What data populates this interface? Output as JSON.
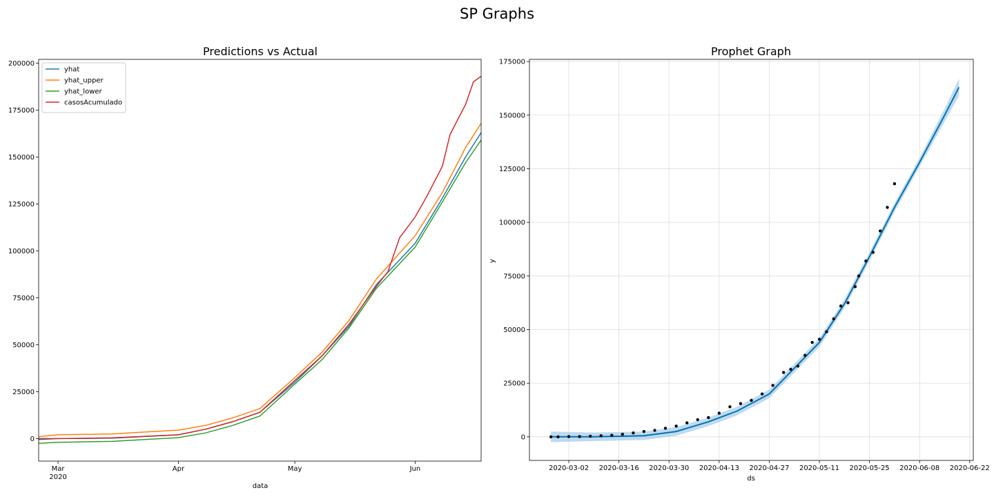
{
  "figure": {
    "title": "SP Graphs"
  },
  "chart_data": [
    {
      "type": "line",
      "title": "Predictions vs Actual",
      "xlabel": "data",
      "ylabel": "",
      "x_start": "2020-02-25",
      "x_end": "2020-06-18",
      "x_ticks": [
        {
          "date": "2020-03-01",
          "label": "Mar",
          "sublabel": "2020"
        },
        {
          "date": "2020-04-01",
          "label": "Apr",
          "sublabel": ""
        },
        {
          "date": "2020-05-01",
          "label": "May",
          "sublabel": ""
        },
        {
          "date": "2020-06-01",
          "label": "Jun",
          "sublabel": ""
        }
      ],
      "ylim": [
        -12000,
        202000
      ],
      "y_ticks": [
        0,
        25000,
        50000,
        75000,
        100000,
        125000,
        150000,
        175000,
        200000
      ],
      "grid": false,
      "legend": "top-left",
      "series": [
        {
          "name": "yhat",
          "color": "#1f77b4",
          "x": [
            "2020-02-25",
            "2020-03-01",
            "2020-03-15",
            "2020-04-01",
            "2020-04-08",
            "2020-04-15",
            "2020-04-22",
            "2020-05-01",
            "2020-05-08",
            "2020-05-15",
            "2020-05-22",
            "2020-06-01",
            "2020-06-08",
            "2020-06-14",
            "2020-06-18"
          ],
          "values": [
            -500,
            0,
            200,
            2000,
            5000,
            9000,
            14000,
            30000,
            44000,
            60000,
            82000,
            104000,
            128000,
            150000,
            163000
          ]
        },
        {
          "name": "yhat_upper",
          "color": "#ff7f0e",
          "x": [
            "2020-02-25",
            "2020-03-01",
            "2020-03-15",
            "2020-04-01",
            "2020-04-08",
            "2020-04-15",
            "2020-04-22",
            "2020-05-01",
            "2020-05-08",
            "2020-05-15",
            "2020-05-22",
            "2020-06-01",
            "2020-06-08",
            "2020-06-14",
            "2020-06-18"
          ],
          "values": [
            1000,
            2000,
            2500,
            4500,
            7000,
            11000,
            16000,
            32500,
            46000,
            63000,
            85000,
            108000,
            131000,
            155000,
            168000
          ]
        },
        {
          "name": "yhat_lower",
          "color": "#2ca02c",
          "x": [
            "2020-02-25",
            "2020-03-01",
            "2020-03-15",
            "2020-04-01",
            "2020-04-08",
            "2020-04-15",
            "2020-04-22",
            "2020-05-01",
            "2020-05-08",
            "2020-05-15",
            "2020-05-22",
            "2020-06-01",
            "2020-06-08",
            "2020-06-14",
            "2020-06-18"
          ],
          "values": [
            -2500,
            -2000,
            -1500,
            500,
            3000,
            7000,
            12000,
            29000,
            42000,
            59000,
            80000,
            102000,
            126000,
            147000,
            159000
          ]
        },
        {
          "name": "casosAcumulado",
          "color": "#d62728",
          "x": [
            "2020-02-25",
            "2020-03-01",
            "2020-03-15",
            "2020-04-01",
            "2020-04-08",
            "2020-04-15",
            "2020-04-22",
            "2020-05-01",
            "2020-05-08",
            "2020-05-15",
            "2020-05-22",
            "2020-05-25",
            "2020-05-28",
            "2020-06-01",
            "2020-06-04",
            "2020-06-08",
            "2020-06-10",
            "2020-06-14",
            "2020-06-16",
            "2020-06-18"
          ],
          "values": [
            0,
            0,
            400,
            2000,
            5000,
            9000,
            14000,
            31000,
            44000,
            61000,
            81000,
            89000,
            107000,
            118000,
            129000,
            145000,
            162000,
            178000,
            190000,
            193000
          ]
        }
      ]
    },
    {
      "type": "line",
      "title": "Prophet Graph",
      "xlabel": "ds",
      "ylabel": "y",
      "x_start": "2020-02-20",
      "x_end": "2020-06-23",
      "x_ticks": [
        {
          "date": "2020-03-02",
          "label": "2020-03-02"
        },
        {
          "date": "2020-03-16",
          "label": "2020-03-16"
        },
        {
          "date": "2020-03-30",
          "label": "2020-03-30"
        },
        {
          "date": "2020-04-13",
          "label": "2020-04-13"
        },
        {
          "date": "2020-04-27",
          "label": "2020-04-27"
        },
        {
          "date": "2020-05-11",
          "label": "2020-05-11"
        },
        {
          "date": "2020-05-25",
          "label": "2020-05-25"
        },
        {
          "date": "2020-06-08",
          "label": "2020-06-08"
        },
        {
          "date": "2020-06-22",
          "label": "2020-06-22"
        }
      ],
      "ylim": [
        -11000,
        176000
      ],
      "y_ticks": [
        0,
        25000,
        50000,
        75000,
        100000,
        125000,
        150000,
        175000
      ],
      "grid": true,
      "forecast": {
        "color": "#0072b2",
        "band_color": "#a9cde9",
        "x": [
          "2020-02-26",
          "2020-03-09",
          "2020-03-23",
          "2020-04-01",
          "2020-04-10",
          "2020-04-18",
          "2020-04-27",
          "2020-05-04",
          "2020-05-11",
          "2020-05-18",
          "2020-05-25",
          "2020-06-01",
          "2020-06-08",
          "2020-06-15",
          "2020-06-19"
        ],
        "yhat": [
          0,
          0,
          500,
          2500,
          7000,
          12000,
          20000,
          32000,
          44000,
          62000,
          84000,
          107000,
          128000,
          150000,
          163000
        ],
        "yhat_lower": [
          -2500,
          -2000,
          -1500,
          500,
          5000,
          10000,
          18000,
          30000,
          42000,
          60000,
          82000,
          105000,
          126000,
          147000,
          159000
        ],
        "yhat_upper": [
          2500,
          2000,
          2500,
          4500,
          9000,
          14000,
          22000,
          34000,
          46000,
          64000,
          86000,
          109000,
          130000,
          153000,
          167000
        ]
      },
      "actual": {
        "color": "#000000",
        "x": [
          "2020-02-26",
          "2020-02-28",
          "2020-03-02",
          "2020-03-05",
          "2020-03-08",
          "2020-03-11",
          "2020-03-14",
          "2020-03-17",
          "2020-03-20",
          "2020-03-23",
          "2020-03-26",
          "2020-03-29",
          "2020-04-01",
          "2020-04-04",
          "2020-04-07",
          "2020-04-10",
          "2020-04-13",
          "2020-04-16",
          "2020-04-19",
          "2020-04-22",
          "2020-04-25",
          "2020-04-28",
          "2020-05-01",
          "2020-05-03",
          "2020-05-05",
          "2020-05-07",
          "2020-05-09",
          "2020-05-11",
          "2020-05-13",
          "2020-05-15",
          "2020-05-17",
          "2020-05-19",
          "2020-05-21",
          "2020-05-22",
          "2020-05-24",
          "2020-05-26",
          "2020-05-28",
          "2020-05-30",
          "2020-06-01"
        ],
        "values": [
          0,
          0,
          100,
          150,
          300,
          500,
          700,
          1200,
          1800,
          2500,
          3000,
          4000,
          5000,
          6500,
          8000,
          9000,
          11000,
          14000,
          15500,
          17000,
          20000,
          24000,
          30000,
          31500,
          33000,
          38000,
          44000,
          45500,
          49000,
          55000,
          61000,
          62500,
          70000,
          75000,
          82000,
          86000,
          96000,
          107000,
          118000
        ]
      }
    }
  ]
}
